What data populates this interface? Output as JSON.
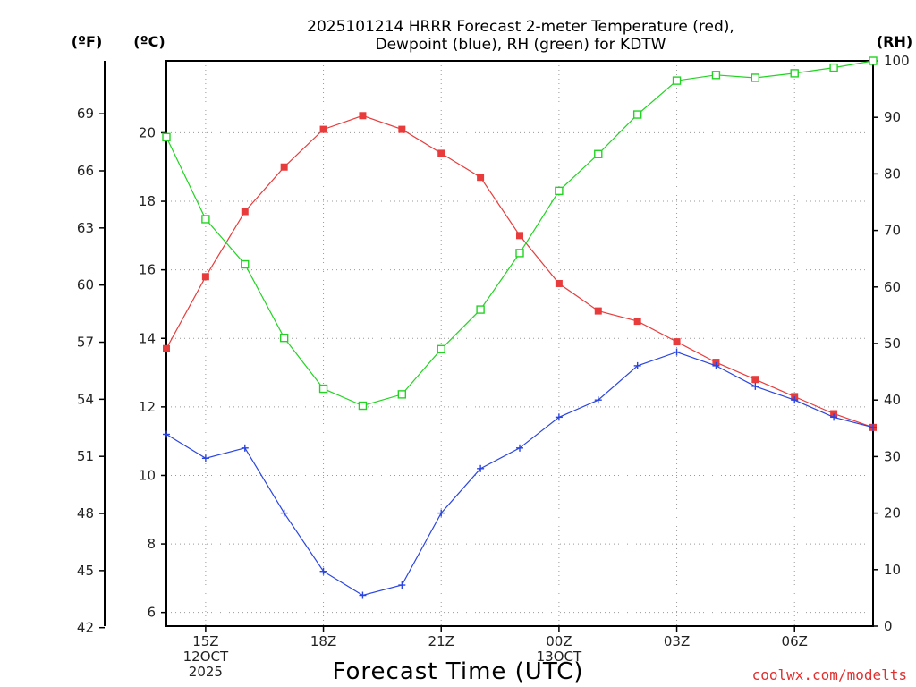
{
  "chart_data": {
    "type": "line",
    "title_lines": [
      "2025101214 HRRR Forecast 2-meter Temperature (red),",
      "Dewpoint (blue), RH (green) for KDTW"
    ],
    "xlabel": "Forecast Time (UTC)",
    "credit": "coolwx.com/modelts",
    "axis_units": {
      "fahrenheit": "(ºF)",
      "celsius": "(ºC)",
      "rh": "(RH)"
    },
    "x_hours": [
      14,
      15,
      16,
      17,
      18,
      19,
      20,
      21,
      22,
      23,
      24,
      25,
      26,
      27,
      28,
      29,
      30,
      31,
      32
    ],
    "x_ticks": [
      {
        "hour": 15,
        "lines": [
          "15Z",
          "12OCT",
          "2025"
        ]
      },
      {
        "hour": 18,
        "lines": [
          "18Z"
        ]
      },
      {
        "hour": 21,
        "lines": [
          "21Z"
        ]
      },
      {
        "hour": 24,
        "lines": [
          "00Z",
          "13OCT"
        ]
      },
      {
        "hour": 27,
        "lines": [
          "03Z"
        ]
      },
      {
        "hour": 30,
        "lines": [
          "06Z"
        ]
      }
    ],
    "celsius_range": [
      5.6,
      22.1
    ],
    "celsius_ticks": [
      6,
      8,
      10,
      12,
      14,
      16,
      18,
      20
    ],
    "fahrenheit_ticks": [
      42,
      45,
      48,
      51,
      54,
      57,
      60,
      63,
      66,
      69
    ],
    "rh_range": [
      0,
      100
    ],
    "rh_ticks": [
      0,
      10,
      20,
      30,
      40,
      50,
      60,
      70,
      80,
      90,
      100
    ],
    "series": [
      {
        "name": "Temperature",
        "axis": "celsius",
        "color": "#e83c3c",
        "marker": "filled-square",
        "values": [
          13.7,
          15.8,
          17.7,
          19.0,
          20.1,
          20.5,
          20.1,
          19.4,
          18.7,
          17.0,
          15.6,
          14.8,
          14.5,
          13.9,
          13.3,
          12.8,
          12.3,
          11.8,
          11.4
        ]
      },
      {
        "name": "Dewpoint",
        "axis": "celsius",
        "color": "#2b45e0",
        "marker": "plus",
        "values": [
          11.2,
          10.5,
          10.8,
          8.9,
          7.2,
          6.5,
          6.8,
          8.9,
          10.2,
          10.8,
          11.7,
          12.2,
          13.2,
          13.6,
          13.2,
          12.6,
          12.2,
          11.7,
          11.4
        ]
      },
      {
        "name": "RH",
        "axis": "rh",
        "color": "#22d422",
        "marker": "open-square",
        "values": [
          86.5,
          72,
          64,
          51,
          42,
          39,
          41,
          49,
          56,
          66,
          77,
          83.5,
          90.5,
          96.5,
          97.5,
          97,
          97.8,
          98.8,
          100
        ]
      }
    ]
  }
}
